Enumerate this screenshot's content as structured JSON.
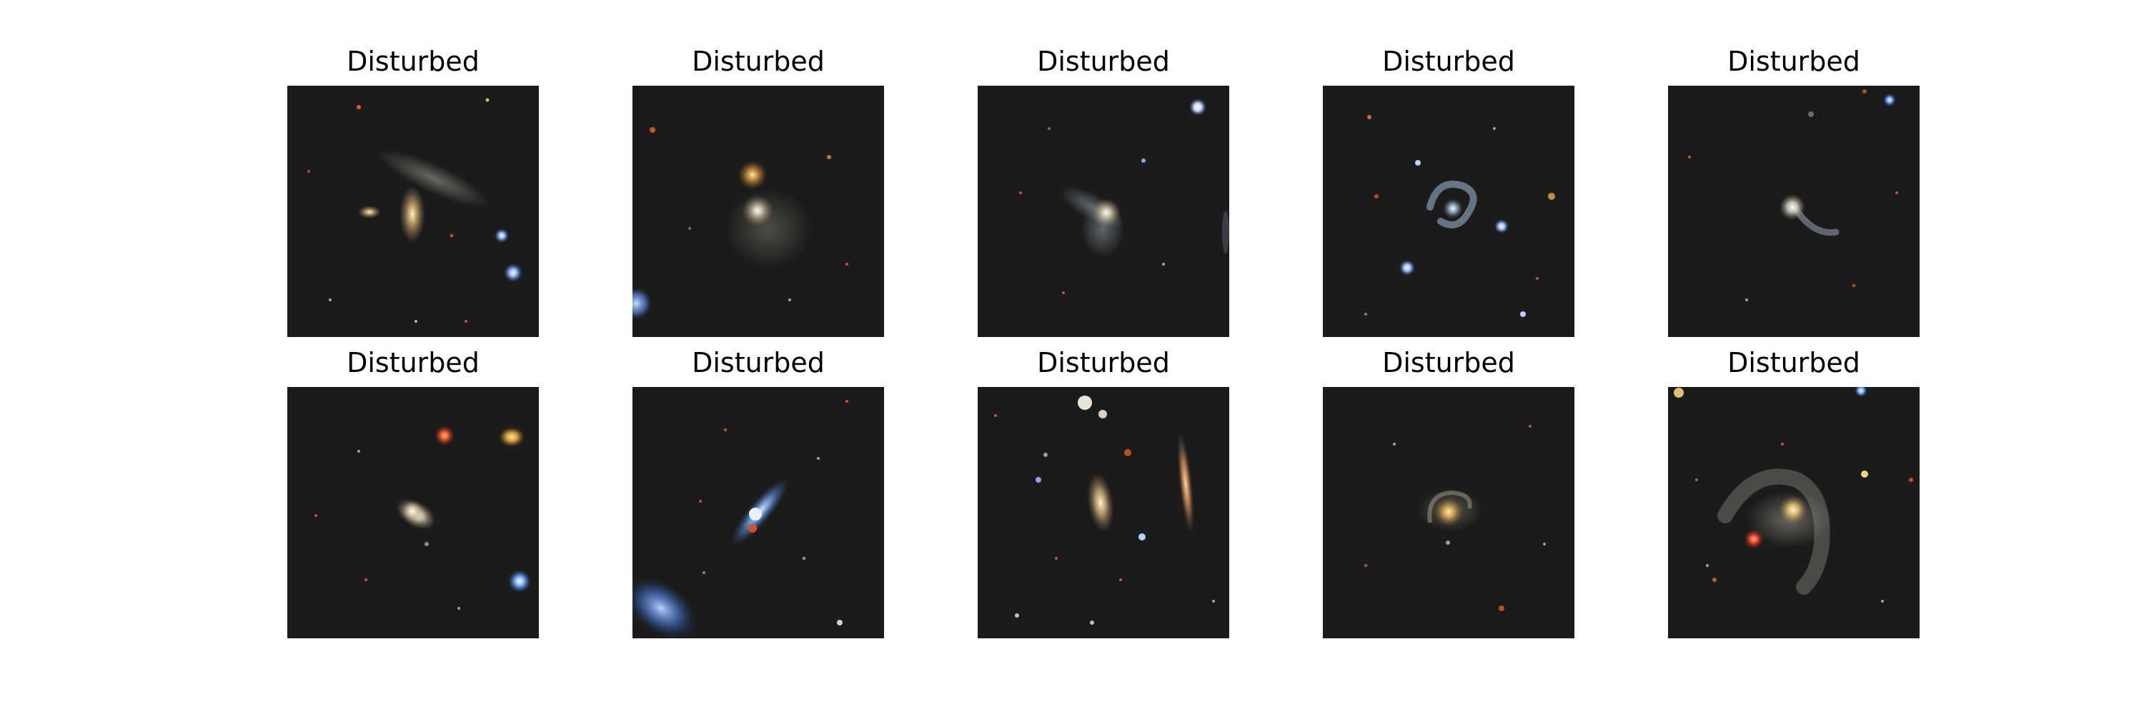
{
  "figure": {
    "panels": [
      {
        "title": "Disturbed",
        "subject": "disturbed-galaxy-cutout"
      },
      {
        "title": "Disturbed",
        "subject": "disturbed-galaxy-cutout"
      },
      {
        "title": "Disturbed",
        "subject": "disturbed-galaxy-cutout"
      },
      {
        "title": "Disturbed",
        "subject": "disturbed-galaxy-cutout"
      },
      {
        "title": "Disturbed",
        "subject": "disturbed-galaxy-cutout"
      },
      {
        "title": "Disturbed",
        "subject": "disturbed-galaxy-cutout"
      },
      {
        "title": "Disturbed",
        "subject": "disturbed-galaxy-cutout"
      },
      {
        "title": "Disturbed",
        "subject": "disturbed-galaxy-cutout"
      },
      {
        "title": "Disturbed",
        "subject": "disturbed-galaxy-cutout"
      },
      {
        "title": "Disturbed",
        "subject": "disturbed-galaxy-cutout"
      }
    ]
  },
  "colors": {
    "sky_background": "#1b1b1b",
    "galaxy_core": "#fff6d8",
    "galaxy_halo": "#b8aa90",
    "blue_star": "#9fc4ff",
    "red_star": "#e0502a"
  }
}
